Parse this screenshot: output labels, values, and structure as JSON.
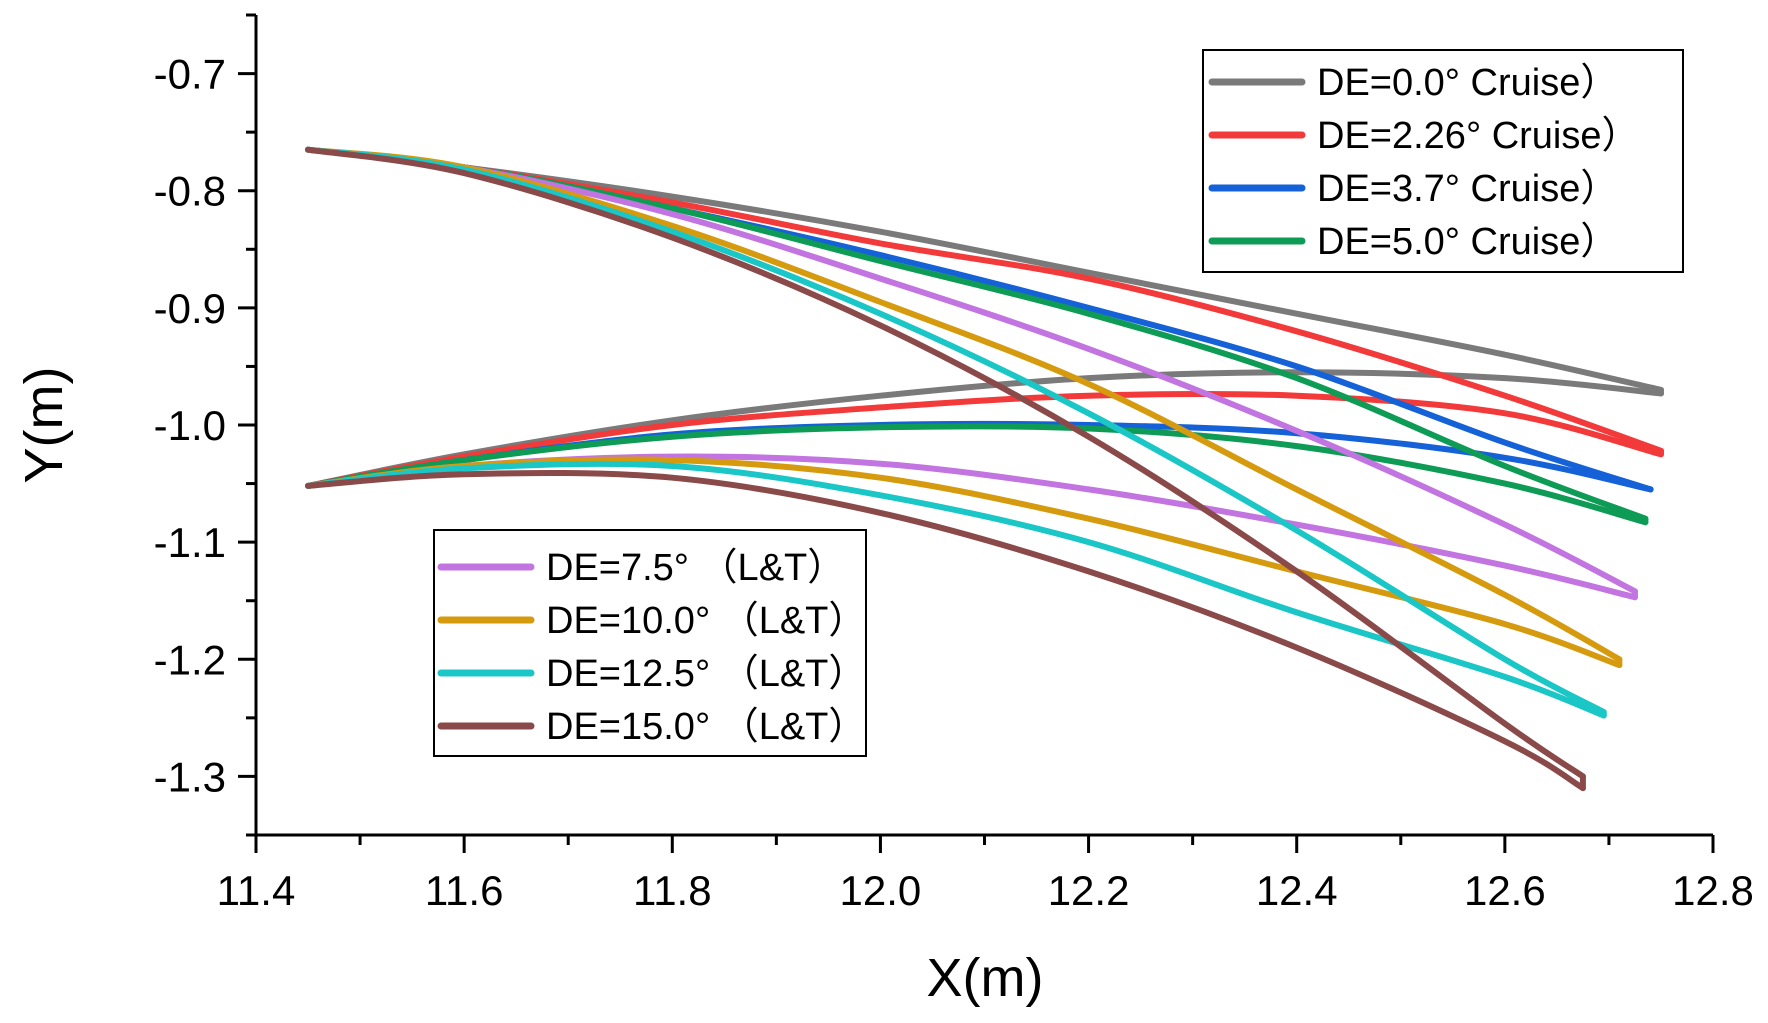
{
  "chart_data": {
    "type": "line",
    "title": "",
    "xlabel": "X(m)",
    "ylabel": "Y(m)",
    "xlim": [
      11.4,
      12.8
    ],
    "ylim": [
      -1.35,
      -0.65
    ],
    "xticks": [
      11.4,
      11.6,
      11.8,
      12.0,
      12.2,
      12.4,
      12.6,
      12.8
    ],
    "xtick_labels": [
      "11.4",
      "11.6",
      "11.8",
      "12.0",
      "12.2",
      "12.4",
      "12.6",
      "12.8"
    ],
    "yticks": [
      -0.7,
      -0.8,
      -0.9,
      -1.0,
      -1.1,
      -1.2,
      -1.3
    ],
    "ytick_labels": [
      "-0.7",
      "-0.8",
      "-0.9",
      "-1.0",
      "-1.1",
      "-1.2",
      "-1.3"
    ],
    "grid": false,
    "legend_groups": [
      {
        "placement": "top-right",
        "series": [
          0,
          1,
          2,
          3
        ]
      },
      {
        "placement": "lower-left",
        "series": [
          4,
          5,
          6,
          7
        ]
      }
    ],
    "series": [
      {
        "name": "DE=0.0° Cruise）",
        "color": "#7a7a7a",
        "upper": [
          [
            11.45,
            -0.765
          ],
          [
            11.6,
            -0.78
          ],
          [
            11.8,
            -0.805
          ],
          [
            12.0,
            -0.835
          ],
          [
            12.2,
            -0.87
          ],
          [
            12.4,
            -0.905
          ],
          [
            12.6,
            -0.94
          ],
          [
            12.75,
            -0.97
          ]
        ],
        "lower": [
          [
            11.45,
            -1.052
          ],
          [
            11.6,
            -1.025
          ],
          [
            11.8,
            -0.996
          ],
          [
            12.0,
            -0.975
          ],
          [
            12.2,
            -0.96
          ],
          [
            12.4,
            -0.955
          ],
          [
            12.6,
            -0.96
          ],
          [
            12.75,
            -0.973
          ]
        ]
      },
      {
        "name": "DE=2.26° Cruise）",
        "color": "#f23a3a",
        "upper": [
          [
            11.45,
            -0.765
          ],
          [
            11.6,
            -0.78
          ],
          [
            11.8,
            -0.81
          ],
          [
            12.0,
            -0.845
          ],
          [
            12.2,
            -0.875
          ],
          [
            12.4,
            -0.92
          ],
          [
            12.6,
            -0.975
          ],
          [
            12.75,
            -1.022
          ]
        ],
        "lower": [
          [
            11.45,
            -1.052
          ],
          [
            11.6,
            -1.027
          ],
          [
            11.8,
            -1.0
          ],
          [
            12.0,
            -0.985
          ],
          [
            12.2,
            -0.975
          ],
          [
            12.4,
            -0.975
          ],
          [
            12.6,
            -0.99
          ],
          [
            12.75,
            -1.025
          ]
        ]
      },
      {
        "name": "DE=3.7° Cruise）",
        "color": "#1561d8",
        "upper": [
          [
            11.45,
            -0.765
          ],
          [
            11.6,
            -0.78
          ],
          [
            11.8,
            -0.815
          ],
          [
            12.0,
            -0.855
          ],
          [
            12.2,
            -0.9
          ],
          [
            12.4,
            -0.95
          ],
          [
            12.6,
            -1.015
          ],
          [
            12.74,
            -1.055
          ]
        ],
        "lower": [
          [
            11.45,
            -1.052
          ],
          [
            11.6,
            -1.03
          ],
          [
            11.8,
            -1.008
          ],
          [
            12.0,
            -1.0
          ],
          [
            12.2,
            -1.0
          ],
          [
            12.4,
            -1.007
          ],
          [
            12.6,
            -1.028
          ],
          [
            12.74,
            -1.055
          ]
        ]
      },
      {
        "name": "DE=5.0° Cruise）",
        "color": "#0e9b55",
        "upper": [
          [
            11.45,
            -0.765
          ],
          [
            11.6,
            -0.78
          ],
          [
            11.8,
            -0.815
          ],
          [
            12.0,
            -0.86
          ],
          [
            12.2,
            -0.905
          ],
          [
            12.4,
            -0.96
          ],
          [
            12.6,
            -1.035
          ],
          [
            12.735,
            -1.08
          ]
        ],
        "lower": [
          [
            11.45,
            -1.052
          ],
          [
            11.6,
            -1.03
          ],
          [
            11.8,
            -1.01
          ],
          [
            12.0,
            -1.002
          ],
          [
            12.2,
            -1.003
          ],
          [
            12.4,
            -1.018
          ],
          [
            12.6,
            -1.05
          ],
          [
            12.735,
            -1.083
          ]
        ]
      },
      {
        "name": "DE=7.5° （L&T）",
        "color": "#c274e0",
        "upper": [
          [
            11.45,
            -0.765
          ],
          [
            11.6,
            -0.78
          ],
          [
            11.8,
            -0.82
          ],
          [
            12.0,
            -0.875
          ],
          [
            12.2,
            -0.935
          ],
          [
            12.4,
            -1.005
          ],
          [
            12.6,
            -1.085
          ],
          [
            12.725,
            -1.142
          ]
        ],
        "lower": [
          [
            11.45,
            -1.052
          ],
          [
            11.6,
            -1.035
          ],
          [
            11.8,
            -1.027
          ],
          [
            12.0,
            -1.033
          ],
          [
            12.2,
            -1.055
          ],
          [
            12.4,
            -1.085
          ],
          [
            12.6,
            -1.12
          ],
          [
            12.725,
            -1.147
          ]
        ]
      },
      {
        "name": "DE=10.0° （L&T）",
        "color": "#d69a0e",
        "upper": [
          [
            11.45,
            -0.765
          ],
          [
            11.6,
            -0.78
          ],
          [
            11.8,
            -0.83
          ],
          [
            12.0,
            -0.895
          ],
          [
            12.2,
            -0.965
          ],
          [
            12.4,
            -1.055
          ],
          [
            12.6,
            -1.145
          ],
          [
            12.71,
            -1.2
          ]
        ],
        "lower": [
          [
            11.45,
            -1.052
          ],
          [
            11.6,
            -1.035
          ],
          [
            11.8,
            -1.03
          ],
          [
            12.0,
            -1.045
          ],
          [
            12.2,
            -1.08
          ],
          [
            12.4,
            -1.125
          ],
          [
            12.6,
            -1.17
          ],
          [
            12.71,
            -1.205
          ]
        ]
      },
      {
        "name": "DE=12.5° （L&T）",
        "color": "#1ac6c6",
        "upper": [
          [
            11.45,
            -0.765
          ],
          [
            11.6,
            -0.782
          ],
          [
            11.8,
            -0.835
          ],
          [
            12.0,
            -0.905
          ],
          [
            12.2,
            -0.99
          ],
          [
            12.4,
            -1.09
          ],
          [
            12.6,
            -1.2
          ],
          [
            12.695,
            -1.245
          ]
        ],
        "lower": [
          [
            11.45,
            -1.052
          ],
          [
            11.6,
            -1.037
          ],
          [
            11.8,
            -1.035
          ],
          [
            12.0,
            -1.06
          ],
          [
            12.2,
            -1.1
          ],
          [
            12.4,
            -1.16
          ],
          [
            12.6,
            -1.215
          ],
          [
            12.695,
            -1.248
          ]
        ]
      },
      {
        "name": "DE=15.0° （L&T）",
        "color": "#8b4a4a",
        "upper": [
          [
            11.45,
            -0.765
          ],
          [
            11.6,
            -0.785
          ],
          [
            11.8,
            -0.84
          ],
          [
            12.0,
            -0.915
          ],
          [
            12.2,
            -1.01
          ],
          [
            12.4,
            -1.125
          ],
          [
            12.6,
            -1.255
          ],
          [
            12.675,
            -1.3
          ]
        ],
        "lower": [
          [
            11.45,
            -1.052
          ],
          [
            11.6,
            -1.042
          ],
          [
            11.8,
            -1.045
          ],
          [
            12.0,
            -1.075
          ],
          [
            12.2,
            -1.125
          ],
          [
            12.4,
            -1.19
          ],
          [
            12.6,
            -1.27
          ],
          [
            12.675,
            -1.31
          ]
        ]
      }
    ]
  }
}
